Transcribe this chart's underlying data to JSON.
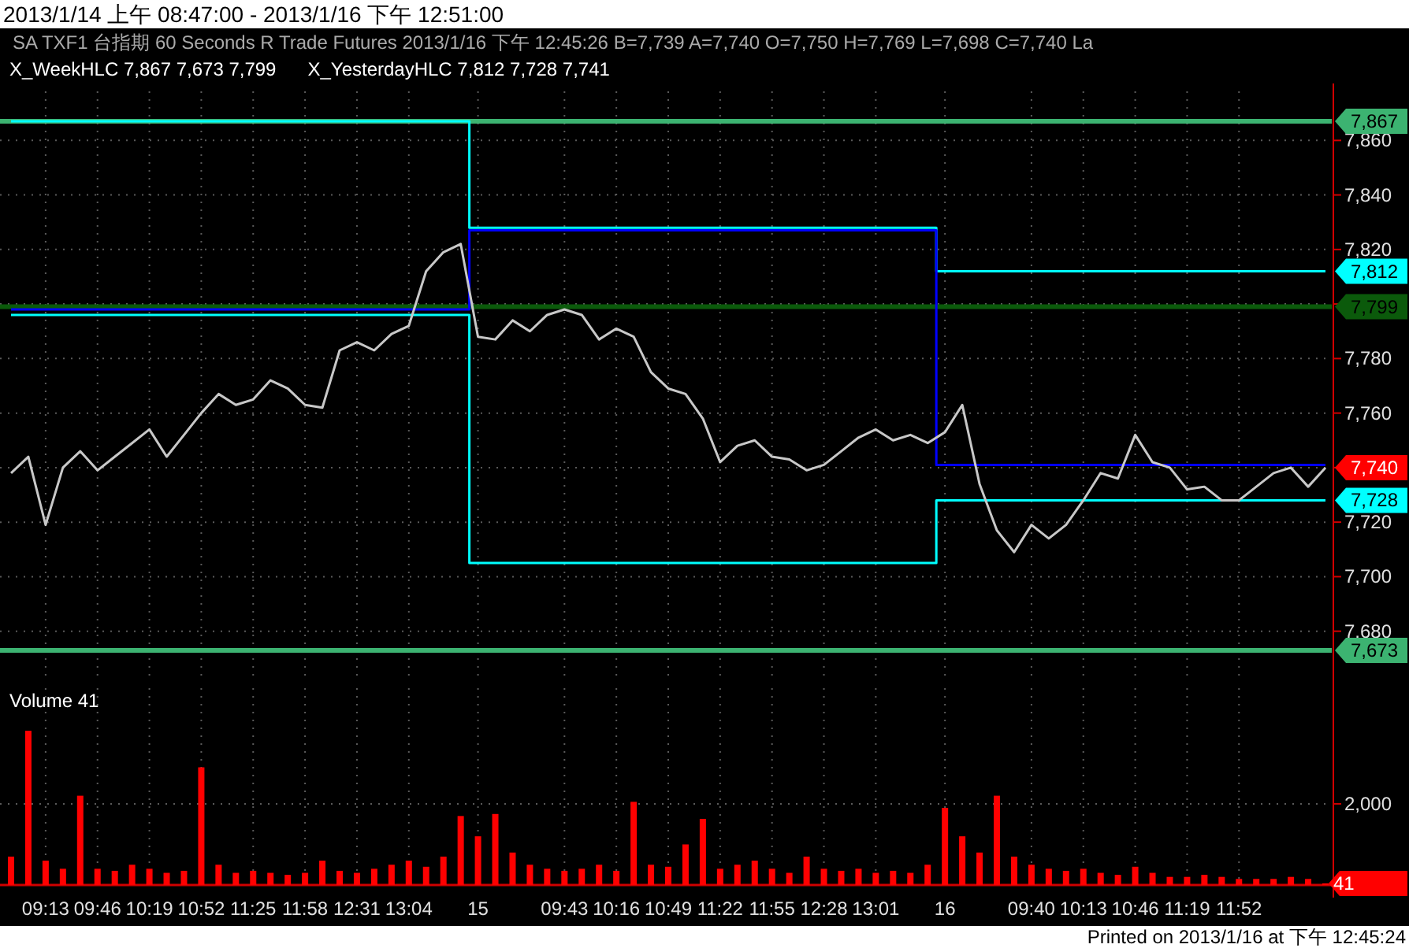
{
  "chart_data": [
    {
      "type": "line",
      "title": "2013/1/14 上午 08:47:00 - 2013/1/16 下午 12:51:00",
      "subtitle": "SA  TXF1  台指期  60 Seconds  R  Trade  Futures  2013/1/16  下午 12:45:26  B=7,739  A=7,740  O=7,750  H=7,769  L=7,698  C=7,740  La",
      "categories": [
        null,
        null,
        null,
        null,
        null,
        null,
        null,
        null,
        null,
        null,
        null,
        null,
        null,
        null,
        null,
        null,
        null,
        null,
        null,
        null,
        null,
        null,
        null,
        null,
        null,
        null,
        null,
        null,
        null,
        null,
        null,
        null,
        null,
        null,
        null,
        null,
        null,
        null,
        null,
        null,
        null,
        null,
        null,
        null,
        null,
        null,
        null,
        null,
        null,
        null,
        null,
        null,
        null,
        null,
        null,
        null,
        null,
        null,
        null,
        null,
        null,
        null,
        null,
        null,
        null,
        null,
        null,
        null,
        null,
        null,
        null,
        null,
        null,
        null,
        null,
        null,
        null
      ],
      "series": [
        {
          "type": "step",
          "color": "#00ffff",
          "values": [
            7867,
            7867,
            7867,
            7867,
            7867,
            7867,
            7867,
            7867,
            7867,
            7867,
            7867,
            7867,
            7867,
            7867,
            7867,
            7867,
            7867,
            7867,
            7867,
            7867,
            7867,
            7867,
            7867,
            7867,
            7867,
            7867,
            7867,
            7828,
            7828,
            7828,
            7828,
            7828,
            7828,
            7828,
            7828,
            7828,
            7828,
            7828,
            7828,
            7828,
            7828,
            7828,
            7828,
            7828,
            7828,
            7828,
            7828,
            7828,
            7828,
            7828,
            7828,
            7828,
            7828,
            7828,
            7812,
            7812,
            7812,
            7812,
            7812,
            7812,
            7812,
            7812,
            7812,
            7812,
            7812,
            7812,
            7812,
            7812,
            7812,
            7812,
            7812,
            7812,
            7812,
            7812,
            7812,
            7812,
            7812
          ],
          "value_labels": [
            null,
            null,
            null,
            null,
            null,
            null,
            null,
            null,
            null,
            null,
            null,
            null,
            null,
            null,
            null,
            null,
            null,
            null,
            null,
            null,
            null,
            null,
            null,
            null,
            null,
            null,
            null,
            null,
            null,
            null,
            null,
            null,
            null,
            null,
            null,
            null,
            null,
            null,
            null,
            null,
            null,
            null,
            null,
            null,
            null,
            null,
            null,
            null,
            null,
            null,
            null,
            null,
            null,
            null,
            null,
            null,
            null,
            null,
            null,
            null,
            null,
            null,
            null,
            null,
            null,
            null,
            null,
            null,
            null,
            null,
            null,
            null,
            null,
            null,
            null,
            null,
            "7,812"
          ]
        },
        {
          "type": "step",
          "color": "#00ffff",
          "values": [
            7796,
            7796,
            7796,
            7796,
            7796,
            7796,
            7796,
            7796,
            7796,
            7796,
            7796,
            7796,
            7796,
            7796,
            7796,
            7796,
            7796,
            7796,
            7796,
            7796,
            7796,
            7796,
            7796,
            7796,
            7796,
            7796,
            7796,
            7705,
            7705,
            7705,
            7705,
            7705,
            7705,
            7705,
            7705,
            7705,
            7705,
            7705,
            7705,
            7705,
            7705,
            7705,
            7705,
            7705,
            7705,
            7705,
            7705,
            7705,
            7705,
            7705,
            7705,
            7705,
            7705,
            7705,
            7728,
            7728,
            7728,
            7728,
            7728,
            7728,
            7728,
            7728,
            7728,
            7728,
            7728,
            7728,
            7728,
            7728,
            7728,
            7728,
            7728,
            7728,
            7728,
            7728,
            7728,
            7728,
            7728
          ],
          "value_labels": [
            null,
            null,
            null,
            null,
            null,
            null,
            null,
            null,
            null,
            null,
            null,
            null,
            null,
            null,
            null,
            null,
            null,
            null,
            null,
            null,
            null,
            null,
            null,
            null,
            null,
            null,
            null,
            null,
            null,
            null,
            null,
            null,
            null,
            null,
            null,
            null,
            null,
            null,
            null,
            null,
            null,
            null,
            null,
            null,
            null,
            null,
            null,
            null,
            null,
            null,
            null,
            null,
            null,
            null,
            null,
            null,
            null,
            null,
            null,
            null,
            null,
            null,
            null,
            null,
            null,
            null,
            null,
            null,
            null,
            null,
            null,
            null,
            null,
            null,
            null,
            null,
            "7,728"
          ]
        },
        {
          "type": "step",
          "color": "#0000ff",
          "values": [
            7798,
            7798,
            7798,
            7798,
            7798,
            7798,
            7798,
            7798,
            7798,
            7798,
            7798,
            7798,
            7798,
            7798,
            7798,
            7798,
            7798,
            7798,
            7798,
            7798,
            7798,
            7798,
            7798,
            7798,
            7798,
            7798,
            7798,
            7827,
            7827,
            7827,
            7827,
            7827,
            7827,
            7827,
            7827,
            7827,
            7827,
            7827,
            7827,
            7827,
            7827,
            7827,
            7827,
            7827,
            7827,
            7827,
            7827,
            7827,
            7827,
            7827,
            7827,
            7827,
            7827,
            7827,
            7741,
            7741,
            7741,
            7741,
            7741,
            7741,
            7741,
            7741,
            7741,
            7741,
            7741,
            7741,
            7741,
            7741,
            7741,
            7741,
            7741,
            7741,
            7741,
            7741,
            7741,
            7741,
            7741
          ]
        },
        {
          "color": "#c8c8c8",
          "value_labels": [
            null,
            null,
            null,
            null,
            null,
            null,
            null,
            null,
            null,
            null,
            null,
            null,
            null,
            null,
            null,
            null,
            null,
            null,
            null,
            null,
            null,
            null,
            null,
            null,
            null,
            null,
            null,
            null,
            null,
            null,
            null,
            null,
            null,
            null,
            null,
            null,
            null,
            null,
            null,
            null,
            null,
            null,
            null,
            null,
            null,
            null,
            null,
            null,
            null,
            null,
            null,
            null,
            null,
            null,
            null,
            null,
            null,
            null,
            null,
            null,
            null,
            null,
            null,
            null,
            null,
            null,
            null,
            null,
            null,
            null,
            null,
            null,
            null,
            null,
            null,
            null,
            "7,740"
          ],
          "values": [
            7738,
            7744,
            7719,
            7740,
            7746,
            7739,
            7744,
            7749,
            7754,
            7744,
            7752,
            7760,
            7767,
            7763,
            7765,
            7772,
            7769,
            7763,
            7762,
            7783,
            7786,
            7783,
            7789,
            7792,
            7812,
            7819,
            7822,
            7788,
            7787,
            7794,
            7790,
            7796,
            7798,
            7796,
            7787,
            7791,
            7788,
            7775,
            7769,
            7767,
            7758,
            7742,
            7748,
            7750,
            7744,
            7743,
            7739,
            7741,
            7746,
            7751,
            7754,
            7750,
            7752,
            7749,
            7753,
            7763,
            7734,
            7717,
            7709,
            7719,
            7714,
            7719,
            7728,
            7738,
            7736,
            7752,
            7742,
            7740,
            7732,
            7733,
            7728,
            7728,
            7733,
            7738,
            7740,
            7733,
            7740
          ]
        }
      ],
      "ylim": [
        7662,
        7878
      ],
      "yticks": [
        {
          "value": 7680,
          "label": "7,680"
        },
        {
          "value": 7700,
          "label": "7,700"
        },
        {
          "value": 7720,
          "label": "7,720"
        },
        {
          "value": 7740,
          "label": null
        },
        {
          "value": 7760,
          "label": "7,760"
        },
        {
          "value": 7780,
          "label": "7,780"
        },
        {
          "value": 7800,
          "label": null
        },
        {
          "value": 7820,
          "label": "7,820"
        },
        {
          "value": 7840,
          "label": "7,840"
        },
        {
          "value": 7860,
          "label": "7,860"
        }
      ],
      "grid": true,
      "tick_labels": "y",
      "ref_lines": [
        {
          "axis": "y",
          "value": 7867,
          "label": "7,867",
          "color": "#3cb371"
        },
        {
          "axis": "y",
          "value": 7673,
          "label": "7,673",
          "color": "#3cb371"
        },
        {
          "axis": "y",
          "value": 7799,
          "label": "7,799",
          "color": "#0b5a0b"
        }
      ],
      "annotations": [
        "X_WeekHLC  7,867  7,673  7,799",
        "X_YesterdayHLC  7,812  7,728  7,741"
      ]
    },
    {
      "type": "bar",
      "categories": [
        null,
        null,
        "09:13",
        null,
        null,
        "09:46",
        null,
        null,
        "10:19",
        null,
        null,
        "10:52",
        null,
        null,
        "11:25",
        null,
        null,
        "11:58",
        null,
        null,
        "12:31",
        null,
        null,
        "13:04",
        null,
        null,
        null,
        "15",
        null,
        null,
        null,
        null,
        "09:43",
        null,
        null,
        "10:16",
        null,
        null,
        "10:49",
        null,
        null,
        "11:22",
        null,
        null,
        "11:55",
        null,
        null,
        "12:28",
        null,
        null,
        "13:01",
        null,
        null,
        null,
        "16",
        null,
        null,
        null,
        null,
        "09:40",
        null,
        null,
        "10:13",
        null,
        null,
        "10:46",
        null,
        null,
        "11:19",
        null,
        null,
        "11:52",
        null,
        null,
        null,
        null,
        null
      ],
      "series": [
        {
          "color": "#ff0000",
          "values": [
            700,
            3800,
            600,
            400,
            2200,
            400,
            350,
            500,
            400,
            300,
            350,
            2900,
            500,
            300,
            350,
            300,
            250,
            300,
            600,
            350,
            300,
            400,
            500,
            600,
            450,
            700,
            1700,
            1200,
            1750,
            800,
            500,
            400,
            350,
            400,
            500,
            350,
            2050,
            500,
            450,
            1000,
            1630,
            400,
            500,
            600,
            400,
            300,
            700,
            400,
            350,
            400,
            300,
            350,
            300,
            500,
            1900,
            1200,
            800,
            2200,
            700,
            500,
            400,
            350,
            400,
            300,
            250,
            450,
            300,
            200,
            200,
            250,
            200,
            150,
            150,
            150,
            200,
            150,
            41
          ],
          "value_labels": [
            null,
            null,
            null,
            null,
            null,
            null,
            null,
            null,
            null,
            null,
            null,
            null,
            null,
            null,
            null,
            null,
            null,
            null,
            null,
            null,
            null,
            null,
            null,
            null,
            null,
            null,
            null,
            null,
            null,
            null,
            null,
            null,
            null,
            null,
            null,
            null,
            null,
            null,
            null,
            null,
            null,
            null,
            null,
            null,
            null,
            null,
            null,
            null,
            null,
            null,
            null,
            null,
            null,
            null,
            null,
            null,
            null,
            null,
            null,
            null,
            null,
            null,
            null,
            null,
            null,
            null,
            null,
            null,
            null,
            null,
            null,
            null,
            null,
            null,
            null,
            null,
            "41"
          ]
        }
      ],
      "ylim": [
        0,
        4850
      ],
      "yticks": [
        {
          "value": 2000,
          "label": "2,000"
        }
      ],
      "grid": true,
      "annotations": [
        "Volume  41",
        "Printed on 2013/1/16 at 下午 12:45:24"
      ]
    }
  ]
}
